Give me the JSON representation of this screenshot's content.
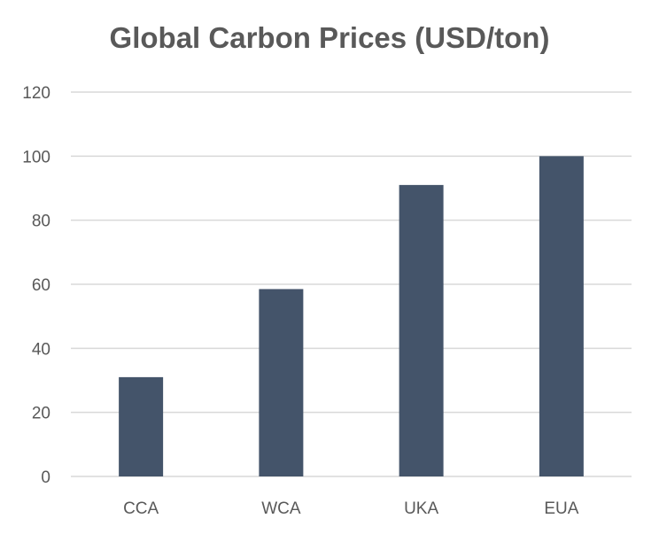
{
  "chart_data": {
    "type": "bar",
    "title": "Global Carbon Prices (USD/ton)",
    "xlabel": "",
    "ylabel": "",
    "categories": [
      "CCA",
      "WCA",
      "UKA",
      "EUA"
    ],
    "values": [
      31,
      58.5,
      91,
      100
    ],
    "ylim": [
      0,
      120
    ],
    "yticks": [
      "0",
      "20",
      "40",
      "60",
      "80",
      "100",
      "120"
    ],
    "grid": true,
    "legend": "none",
    "colors": {
      "bar": "#44546a",
      "grid": "#d9d9d9",
      "text": "#595959"
    }
  }
}
